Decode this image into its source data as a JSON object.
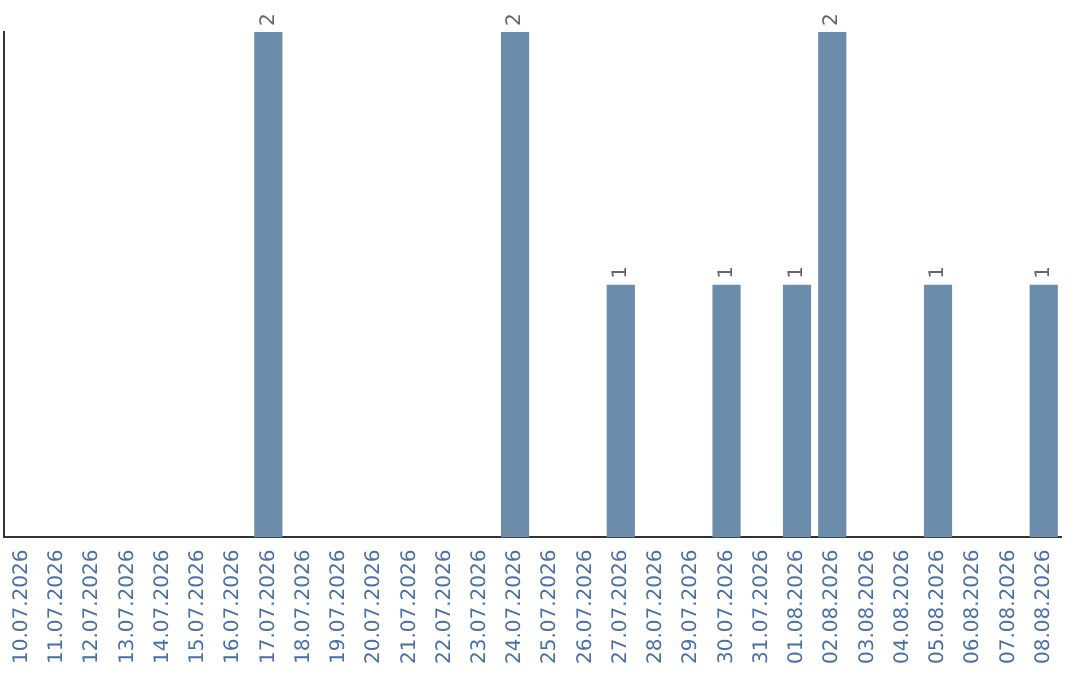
{
  "chart_data": {
    "type": "bar",
    "categories": [
      "10.07.2026",
      "11.07.2026",
      "12.07.2026",
      "13.07.2026",
      "14.07.2026",
      "15.07.2026",
      "16.07.2026",
      "17.07.2026",
      "18.07.2026",
      "19.07.2026",
      "20.07.2026",
      "21.07.2026",
      "22.07.2026",
      "23.07.2026",
      "24.07.2026",
      "25.07.2026",
      "26.07.2026",
      "27.07.2026",
      "28.07.2026",
      "29.07.2026",
      "30.07.2026",
      "31.07.2026",
      "01.08.2026",
      "02.08.2026",
      "03.08.2026",
      "04.08.2026",
      "05.08.2026",
      "06.08.2026",
      "07.08.2026",
      "08.08.2026"
    ],
    "values": [
      0,
      0,
      0,
      0,
      0,
      0,
      0,
      2,
      0,
      0,
      0,
      0,
      0,
      0,
      2,
      0,
      0,
      1,
      0,
      0,
      1,
      0,
      1,
      2,
      0,
      0,
      1,
      0,
      0,
      1
    ],
    "value_labels": [
      null,
      null,
      null,
      null,
      null,
      null,
      null,
      "2",
      null,
      null,
      null,
      null,
      null,
      null,
      "2",
      null,
      null,
      "1",
      null,
      null,
      "1",
      null,
      "1",
      "2",
      null,
      null,
      "1",
      null,
      null,
      "1"
    ],
    "color": "#6b8cab",
    "ylim": [
      0,
      2
    ],
    "tick_labels": "x",
    "grid": false,
    "legend": false
  }
}
